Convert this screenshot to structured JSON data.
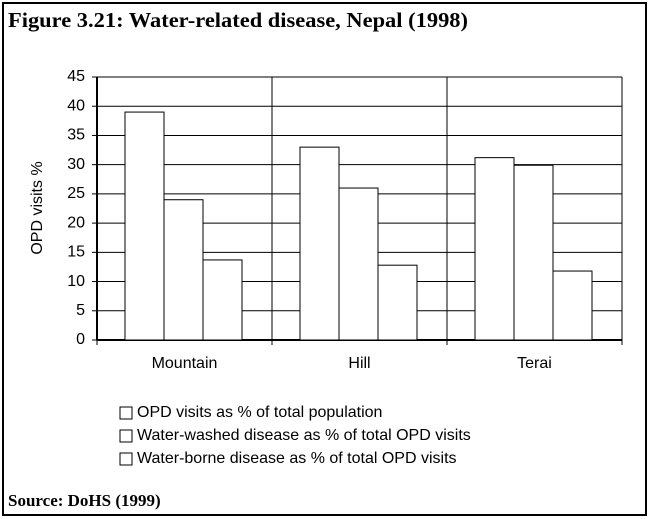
{
  "chart_data": {
    "type": "bar",
    "title": "Figure 3.21: Water-related disease, Nepal (1998)",
    "source": "Source: DoHS (1999)",
    "y_label": "OPD visits %",
    "categories": [
      "Mountain",
      "Hill",
      "Terai"
    ],
    "series": [
      {
        "name": "OPD visits as % of total population",
        "color": "#ffffff",
        "values": [
          39,
          33,
          31.2
        ]
      },
      {
        "name": "Water-washed disease as % of total OPD visits",
        "color": "#ffffff",
        "values": [
          24,
          26,
          29.9
        ]
      },
      {
        "name": "Water-borne disease as % of total OPD visits",
        "color": "#ffffff",
        "values": [
          13.7,
          12.8,
          11.8
        ]
      }
    ],
    "ylim": [
      0,
      45
    ],
    "yticks": [
      0,
      5,
      10,
      15,
      20,
      25,
      30,
      35,
      40,
      45
    ],
    "grid": true
  }
}
